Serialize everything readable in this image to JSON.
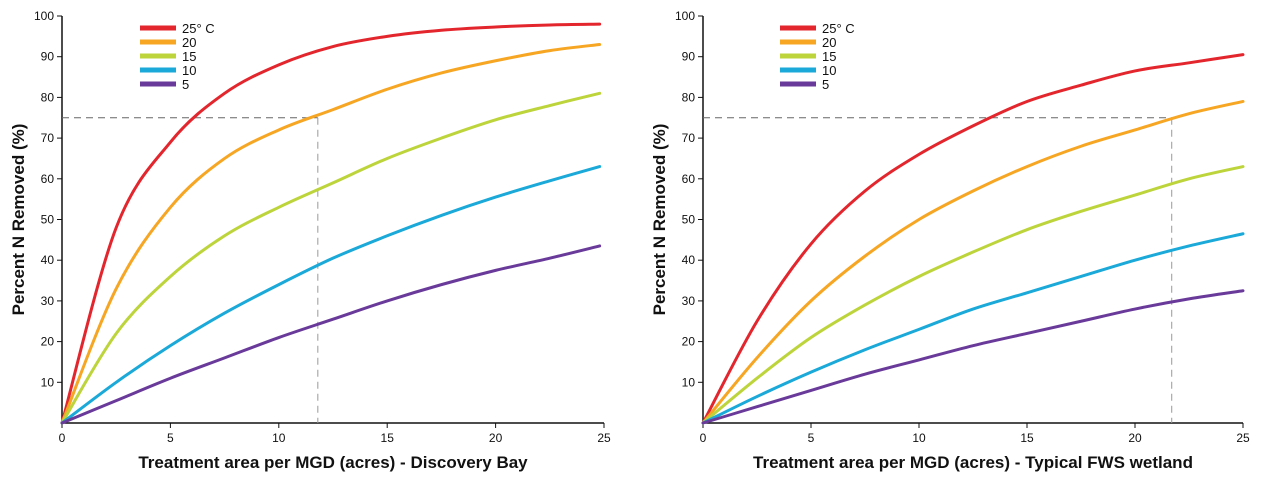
{
  "chart_data": [
    {
      "type": "line",
      "xlabel": "Treatment area per MGD (acres) - Discovery Bay",
      "ylabel": "Percent N Removed (%)",
      "xlim": [
        0,
        25
      ],
      "ylim": [
        0,
        100
      ],
      "x_ticks": [
        0,
        5,
        10,
        15,
        20,
        25
      ],
      "y_ticks": [
        10,
        20,
        30,
        40,
        50,
        60,
        70,
        80,
        90,
        100
      ],
      "legend_position": "top-left",
      "grid": false,
      "reference_lines": {
        "y": 75,
        "x": 11.8,
        "style": "dashed"
      },
      "x": [
        0,
        2.5,
        5,
        7.5,
        10,
        12.5,
        15,
        17.5,
        20,
        22.5,
        24.8
      ],
      "series": [
        {
          "name": "25° C",
          "color": "#e3262d",
          "values": [
            0,
            48,
            69,
            81,
            88,
            92.5,
            95,
            96.5,
            97.3,
            97.8,
            98
          ]
        },
        {
          "name": "20",
          "color": "#f6a623",
          "values": [
            0,
            33,
            53,
            65,
            72,
            77,
            82,
            86,
            89,
            91.5,
            93
          ]
        },
        {
          "name": "15",
          "color": "#bdd43b",
          "values": [
            0,
            22,
            36,
            46,
            53,
            59,
            65,
            70,
            74.5,
            78,
            81
          ]
        },
        {
          "name": "10",
          "color": "#1aa9d8",
          "values": [
            0,
            10,
            19,
            27,
            34,
            40.5,
            46,
            51,
            55.5,
            59.5,
            63
          ]
        },
        {
          "name": "5",
          "color": "#6a3a9a",
          "values": [
            0,
            5.5,
            11,
            16,
            21,
            25.5,
            30,
            34,
            37.5,
            40.5,
            43.5
          ]
        }
      ]
    },
    {
      "type": "line",
      "xlabel": "Treatment area per MGD (acres) - Typical FWS wetland",
      "ylabel": "Percent N Removed (%)",
      "xlim": [
        0,
        25
      ],
      "ylim": [
        0,
        100
      ],
      "x_ticks": [
        0,
        5,
        10,
        15,
        20,
        25
      ],
      "y_ticks": [
        10,
        20,
        30,
        40,
        50,
        60,
        70,
        80,
        90,
        100
      ],
      "legend_position": "top-left",
      "grid": false,
      "reference_lines": {
        "y": 75,
        "x": 21.7,
        "style": "dashed"
      },
      "x": [
        0,
        2.5,
        5,
        7.5,
        10,
        12.5,
        15,
        17.5,
        20,
        22.5,
        25
      ],
      "series": [
        {
          "name": "25° C",
          "color": "#e3262d",
          "values": [
            0,
            25,
            44,
            57,
            66,
            73,
            79,
            83,
            86.5,
            88.5,
            90.5
          ]
        },
        {
          "name": "20",
          "color": "#f6a623",
          "values": [
            0,
            16,
            30,
            41,
            50,
            57,
            63,
            68,
            72,
            76,
            79
          ]
        },
        {
          "name": "15",
          "color": "#bdd43b",
          "values": [
            0,
            11,
            21,
            29,
            36,
            42,
            47.5,
            52,
            56,
            60,
            63
          ]
        },
        {
          "name": "10",
          "color": "#1aa9d8",
          "values": [
            0,
            6.5,
            12.5,
            18,
            23,
            28,
            32,
            36,
            40,
            43.5,
            46.5
          ]
        },
        {
          "name": "5",
          "color": "#6a3a9a",
          "values": [
            0,
            4,
            8,
            12,
            15.5,
            19,
            22,
            25,
            28,
            30.5,
            32.5
          ]
        }
      ]
    }
  ]
}
